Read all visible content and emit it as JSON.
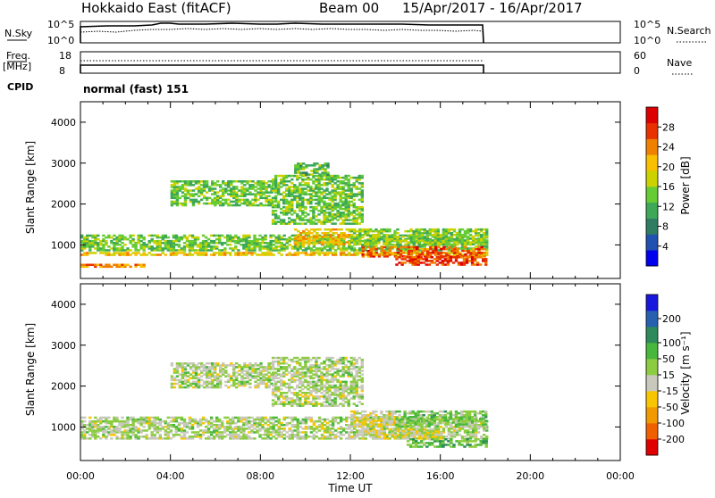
{
  "header": {
    "station": "Hokkaido East (fitACF)",
    "beam": "Beam 00",
    "dates": "15/Apr/2017 - 16/Apr/2017"
  },
  "noise_panel": {
    "left_label": "N.Sky",
    "left_ticks": [
      "10^5",
      "10^0"
    ],
    "right_ticks": [
      "10^5",
      "10^0"
    ],
    "right_label": "N.Search"
  },
  "freq_panel": {
    "left_label_top": "Freq.",
    "left_label_unit": "[MHz]",
    "left_ticks": [
      "18",
      "8"
    ],
    "right_ticks": [
      "60",
      "0"
    ],
    "right_label": "Nave"
  },
  "cpid": {
    "label": "CPID",
    "value": "normal (fast) 151"
  },
  "colors": {
    "power": [
      "#0000ee",
      "#2050b0",
      "#2e7d62",
      "#3ca858",
      "#66cc33",
      "#ccd200",
      "#f8c000",
      "#f08000",
      "#e83000",
      "#dd0000"
    ],
    "velocity": [
      "#e00000",
      "#f06000",
      "#f09a00",
      "#f8c600",
      "#c8c8bc",
      "#8ccc40",
      "#48b83c",
      "#2e8a5a",
      "#2860b0",
      "#1818dd"
    ]
  },
  "chart_data": [
    {
      "type": "heatmap",
      "quantity": "power",
      "ylabel": "Slant Range [km]",
      "ylim": [
        180,
        4500
      ],
      "yticks": [
        "1000",
        "2000",
        "3000",
        "4000"
      ],
      "xlim_hours": [
        0,
        24
      ],
      "colorbar": {
        "label": "Power [dB]",
        "range": [
          0,
          32
        ],
        "ticks": [
          "4",
          "8",
          "12",
          "16",
          "20",
          "24",
          "28"
        ]
      },
      "bands": [
        {
          "t0": 0.0,
          "t1": 18.0,
          "r0": 850,
          "r1": 1250,
          "value": 14
        },
        {
          "t0": 0.0,
          "t1": 18.0,
          "r0": 740,
          "r1": 800,
          "value": 20
        },
        {
          "t0": 0.0,
          "t1": 3.0,
          "r0": 450,
          "r1": 540,
          "value": 24
        },
        {
          "t0": 4.0,
          "t1": 8.5,
          "r0": 1950,
          "r1": 2550,
          "value": 14
        },
        {
          "t0": 8.5,
          "t1": 12.5,
          "r0": 1500,
          "r1": 2700,
          "value": 14
        },
        {
          "t0": 9.5,
          "t1": 11.0,
          "r0": 2700,
          "r1": 3000,
          "value": 13
        },
        {
          "t0": 9.5,
          "t1": 12.0,
          "r0": 1000,
          "r1": 1400,
          "value": 21
        },
        {
          "t0": 12.0,
          "t1": 18.0,
          "r0": 1000,
          "r1": 1400,
          "value": 15
        },
        {
          "t0": 12.5,
          "t1": 18.0,
          "r0": 700,
          "r1": 950,
          "value": 26
        },
        {
          "t0": 14.0,
          "t1": 18.0,
          "r0": 500,
          "r1": 700,
          "value": 27
        }
      ]
    },
    {
      "type": "heatmap",
      "quantity": "velocity",
      "ylabel": "Slant Range [km]",
      "ylim": [
        180,
        4500
      ],
      "yticks": [
        "1000",
        "2000",
        "3000",
        "4000"
      ],
      "xlim_hours": [
        0,
        24
      ],
      "xticks": [
        "00:00",
        "04:00",
        "08:00",
        "12:00",
        "16:00",
        "20:00",
        "00:00"
      ],
      "xlabel": "Time UT",
      "colorbar": {
        "label": "Velocity [m s⁻¹]",
        "range": [
          -250,
          250
        ],
        "ticks": [
          "200",
          "100",
          "50",
          "15",
          "-15",
          "-50",
          "-100",
          "-200"
        ]
      },
      "bands": [
        {
          "t0": 0.0,
          "t1": 18.0,
          "r0": 850,
          "r1": 1250,
          "value": 0
        },
        {
          "t0": 0.0,
          "t1": 18.0,
          "r0": 700,
          "r1": 800,
          "value": 0
        },
        {
          "t0": 4.0,
          "t1": 8.5,
          "r0": 1950,
          "r1": 2550,
          "value": 0
        },
        {
          "t0": 8.5,
          "t1": 12.5,
          "r0": 1500,
          "r1": 2700,
          "value": 0
        },
        {
          "t0": 12.0,
          "t1": 14.0,
          "r0": 1000,
          "r1": 1400,
          "value": -40
        },
        {
          "t0": 14.0,
          "t1": 18.0,
          "r0": 1000,
          "r1": 1400,
          "value": 40
        },
        {
          "t0": 12.5,
          "t1": 16.0,
          "r0": 700,
          "r1": 950,
          "value": -30
        },
        {
          "t0": 14.5,
          "t1": 18.0,
          "r0": 500,
          "r1": 700,
          "value": 60
        }
      ]
    }
  ]
}
